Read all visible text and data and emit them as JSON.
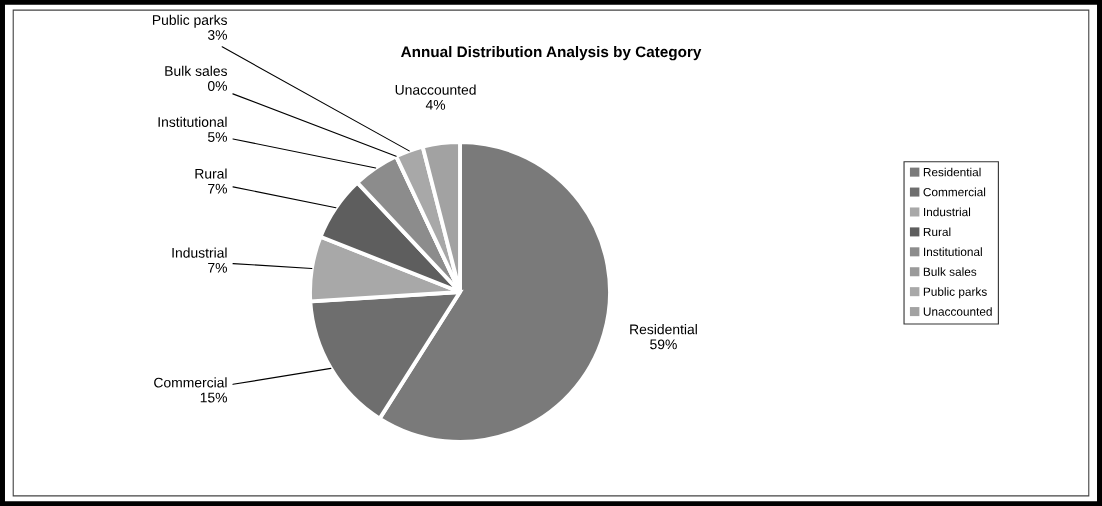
{
  "chart_data": {
    "type": "pie",
    "title": "Annual Distribution Analysis by Category",
    "categories": [
      "Residential",
      "Commercial",
      "Industrial",
      "Rural",
      "Institutional",
      "Bulk sales",
      "Public parks",
      "Unaccounted"
    ],
    "values": [
      59,
      15,
      7,
      7,
      5,
      0,
      3,
      4
    ],
    "colors": [
      "#7a7a7a",
      "#6e6e6e",
      "#a8a8a8",
      "#5e5e5e",
      "#8c8c8c",
      "#9a9a9a",
      "#a8a8a8",
      "#a2a2a2"
    ],
    "value_labels": [
      "59%",
      "15%",
      "7%",
      "7%",
      "5%",
      "0%",
      "3%",
      "4%"
    ],
    "legend": "right"
  }
}
